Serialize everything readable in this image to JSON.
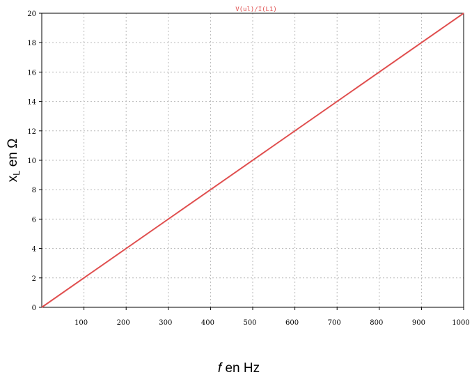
{
  "chart_data": {
    "type": "line",
    "trace_label": "V(ul)/I(L1)",
    "x_axis": {
      "range": [
        0,
        1000
      ],
      "ticks": [
        100,
        200,
        300,
        400,
        500,
        600,
        700,
        800,
        900,
        1000
      ],
      "tick_labels": [
        "100",
        "200",
        "300",
        "400",
        "500",
        "600",
        "700",
        "800",
        "900",
        "1000"
      ],
      "label_main": "f",
      "label_rest": " en Hz"
    },
    "y_axis": {
      "range": [
        0,
        20
      ],
      "ticks": [
        0,
        2,
        4,
        6,
        8,
        10,
        12,
        14,
        16,
        18,
        20
      ],
      "tick_labels": [
        "0",
        "2",
        "4",
        "6",
        "8",
        "10",
        "12",
        "14",
        "16",
        "18",
        "20"
      ],
      "label_main": "x",
      "label_sub": "L",
      "label_rest": " en Ω"
    },
    "grid": true,
    "series": [
      {
        "color": "#e05050",
        "x": [
          0,
          1000
        ],
        "y": [
          0,
          20
        ]
      }
    ]
  }
}
